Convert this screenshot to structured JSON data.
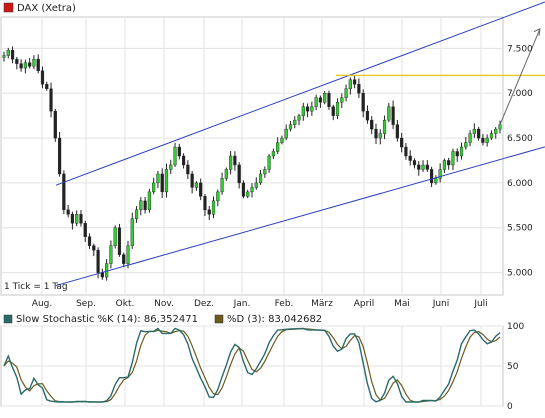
{
  "chart_data": [
    {
      "type": "candlestick",
      "title": "DAX (Xetra)",
      "legend": [
        {
          "label": "DAX (Xetra)",
          "color": "#d01515"
        }
      ],
      "footnote": "1 Tick = 1 Tag",
      "x_ticks": [
        "Aug.",
        "Sep.",
        "Okt.",
        "Nov.",
        "Dez.",
        "Jan.",
        "Feb.",
        "März",
        "April",
        "Mai",
        "Juni",
        "Juli"
      ],
      "y_ticks": [
        "5.000",
        "5.500",
        "6.000",
        "6.500",
        "7.000",
        "7.500"
      ],
      "ylim": [
        4750,
        7850
      ],
      "close_series": [
        7420,
        7480,
        7380,
        7330,
        7280,
        7340,
        7300,
        7380,
        7250,
        7100,
        7050,
        6800,
        6500,
        6100,
        5700,
        5650,
        5550,
        5650,
        5550,
        5400,
        5300,
        5250,
        5000,
        4950,
        5100,
        5300,
        5500,
        5200,
        5100,
        5300,
        5600,
        5700,
        5800,
        5700,
        5900,
        6000,
        6100,
        5900,
        6150,
        6200,
        6400,
        6300,
        6200,
        6100,
        5950,
        6000,
        5850,
        5700,
        5650,
        5800,
        5900,
        6050,
        6150,
        6300,
        6200,
        6000,
        5850,
        5900,
        5950,
        6000,
        6100,
        6150,
        6300,
        6350,
        6450,
        6500,
        6600,
        6650,
        6700,
        6750,
        6850,
        6800,
        6850,
        6950,
        6900,
        7000,
        6850,
        6750,
        6900,
        6950,
        7050,
        7150,
        7100,
        7000,
        6800,
        6700,
        6600,
        6500,
        6550,
        6700,
        6850,
        6650,
        6500,
        6400,
        6300,
        6250,
        6200,
        6150,
        6200,
        6150,
        6000,
        6050,
        6150,
        6250,
        6200,
        6350,
        6300,
        6400,
        6450,
        6550,
        6600,
        6500,
        6450,
        6500,
        6550,
        6600,
        6650
      ],
      "trend_channel": {
        "upper": [
          {
            "x": "Sep.",
            "y": 6100
          },
          {
            "x": "Juli",
            "y": 7750
          }
        ],
        "lower": [
          {
            "x": "Sep.",
            "y": 4950
          },
          {
            "x": "Juli",
            "y": 6200
          }
        ]
      },
      "resistance_level": 7200,
      "projection_target": 7720,
      "colors": {
        "up": "#33cc33",
        "down": "#222222",
        "channel": "#2b3fbf",
        "resistance": "#e6c300"
      }
    },
    {
      "type": "line",
      "series": [
        {
          "name": "Slow Stochastic %K (14): 86,352471",
          "color": "#2a6a6a"
        },
        {
          "name": "%D (3): 83,042682",
          "color": "#6b5b1e"
        }
      ],
      "y_ticks": [
        "0",
        "50",
        "100"
      ],
      "ylim": [
        0,
        100
      ],
      "grid": true
    }
  ]
}
